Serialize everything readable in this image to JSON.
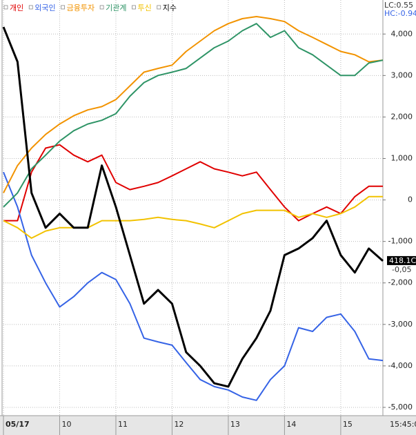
{
  "chart_data": {
    "type": "line",
    "x": [
      9,
      9.25,
      9.5,
      9.75,
      10,
      10.25,
      10.5,
      10.75,
      11,
      11.25,
      11.5,
      11.75,
      12,
      12.25,
      12.5,
      12.75,
      13,
      13.25,
      13.5,
      13.75,
      14,
      14.25,
      14.5,
      14.75,
      15,
      15.25,
      15.5,
      15.75
    ],
    "series": [
      {
        "name": "개인",
        "color": "#e00000",
        "width": 2,
        "values": [
          -500,
          -500,
          670,
          1250,
          1330,
          1080,
          920,
          1080,
          420,
          250,
          330,
          420,
          580,
          750,
          920,
          750,
          670,
          580,
          670,
          250,
          -170,
          -500,
          -330,
          -170,
          -330,
          80,
          330,
          330
        ]
      },
      {
        "name": "외국인",
        "color": "#3563e6",
        "width": 2,
        "values": [
          670,
          -170,
          -1330,
          -2000,
          -2580,
          -2330,
          -2000,
          -1750,
          -1920,
          -2500,
          -3330,
          -3420,
          -3500,
          -3920,
          -4330,
          -4500,
          -4580,
          -4750,
          -4830,
          -4330,
          -4000,
          -3080,
          -3170,
          -2830,
          -2750,
          -3170,
          -3830,
          -3870
        ]
      },
      {
        "name": "금융투자",
        "color": "#f29300",
        "width": 2,
        "values": [
          170,
          830,
          1250,
          1580,
          1830,
          2030,
          2170,
          2250,
          2420,
          2750,
          3080,
          3170,
          3250,
          3580,
          3830,
          4080,
          4250,
          4370,
          4420,
          4370,
          4300,
          4080,
          3920,
          3750,
          3580,
          3500,
          3330,
          3370
        ]
      },
      {
        "name": "기관계",
        "color": "#2e9466",
        "width": 2,
        "values": [
          -170,
          170,
          750,
          1080,
          1420,
          1670,
          1830,
          1920,
          2080,
          2500,
          2830,
          3000,
          3080,
          3170,
          3420,
          3670,
          3830,
          4080,
          4250,
          3920,
          4080,
          3670,
          3500,
          3250,
          3000,
          3000,
          3300,
          3370
        ]
      },
      {
        "name": "투신",
        "color": "#f2c200",
        "width": 2,
        "values": [
          -500,
          -670,
          -920,
          -750,
          -670,
          -670,
          -670,
          -500,
          -500,
          -500,
          -470,
          -420,
          -470,
          -500,
          -580,
          -670,
          -500,
          -330,
          -250,
          -250,
          -250,
          -420,
          -330,
          -420,
          -330,
          -170,
          80,
          80
        ]
      },
      {
        "name": "지수",
        "color": "#000000",
        "width": 3,
        "values": [
          4170,
          3330,
          170,
          -670,
          -330,
          -670,
          -670,
          830,
          -170,
          -1330,
          -2500,
          -2170,
          -2500,
          -3670,
          -4000,
          -4420,
          -4500,
          -3830,
          -3330,
          -2670,
          -1330,
          -1170,
          -920,
          -500,
          -1330,
          -1750,
          -1170,
          -1470
        ]
      }
    ],
    "xlim": [
      9,
      15.75
    ],
    "xticks": [
      {
        "value": 9,
        "label": "05/17"
      },
      10,
      11,
      12,
      13,
      14,
      15
    ],
    "ylim": [
      -5200,
      4820
    ],
    "yticks": [
      {
        "value": 4000,
        "label": "4,000"
      },
      {
        "value": 3000,
        "label": "3,000"
      },
      {
        "value": 2000,
        "label": "2,000"
      },
      {
        "value": 1000,
        "label": "1,000"
      },
      0,
      {
        "value": -1000,
        "label": "-1,000"
      },
      {
        "value": -2000,
        "label": "-2,000"
      },
      {
        "value": -3000,
        "label": "-3,000"
      },
      {
        "value": -4000,
        "label": "-4,000"
      },
      {
        "value": -5000,
        "label": "-5,000"
      }
    ],
    "grid": true,
    "corner_labels": [
      "LC:0.55",
      "HC:-0.94"
    ],
    "last_value_label": "418.1C",
    "last_change_label": "-0,05",
    "time_label": "15:45:0"
  }
}
